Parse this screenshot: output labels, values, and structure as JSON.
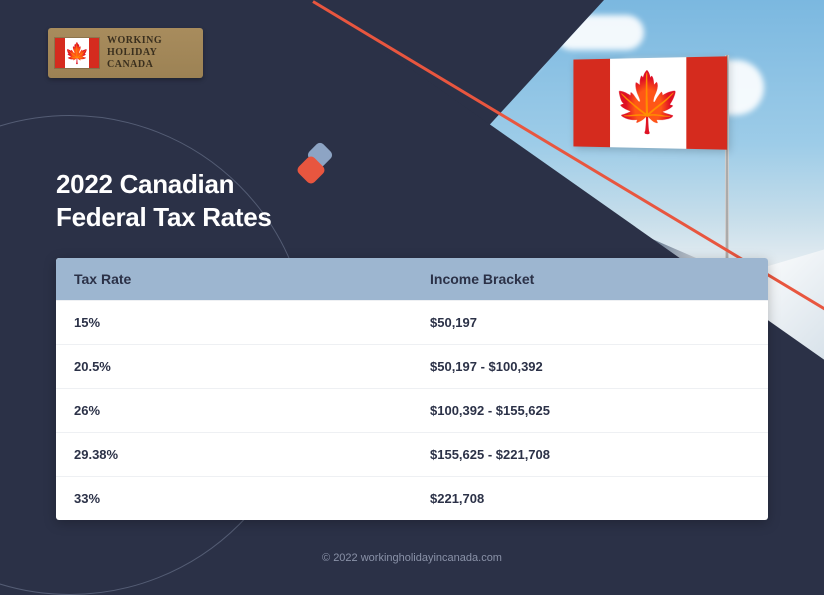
{
  "logo": {
    "line1": "WORKING",
    "line2": "HOLIDAY",
    "line3": "CANADA"
  },
  "title": {
    "line1": "2022 Canadian",
    "line2": "Federal Tax Rates"
  },
  "accent_colors": {
    "shape1": "#8da4c4",
    "shape2": "#e8563f",
    "diagonal_line": "#e8563f"
  },
  "table": {
    "header_bg": "#9db6d0",
    "columns": [
      "Tax Rate",
      "Income Bracket"
    ],
    "rows": [
      [
        "15%",
        "$50,197"
      ],
      [
        "20.5%",
        "$50,197 - $100,392"
      ],
      [
        "26%",
        "$100,392 - $155,625"
      ],
      [
        "29.38%",
        "$155,625 - $221,708"
      ],
      [
        "33%",
        "$221,708"
      ]
    ]
  },
  "copyright": "© 2022 workingholidayincanada.com",
  "colors": {
    "background": "#2b3147",
    "flag_red": "#d52b1e",
    "text_light": "#ffffff",
    "text_dark": "#2b3147"
  }
}
